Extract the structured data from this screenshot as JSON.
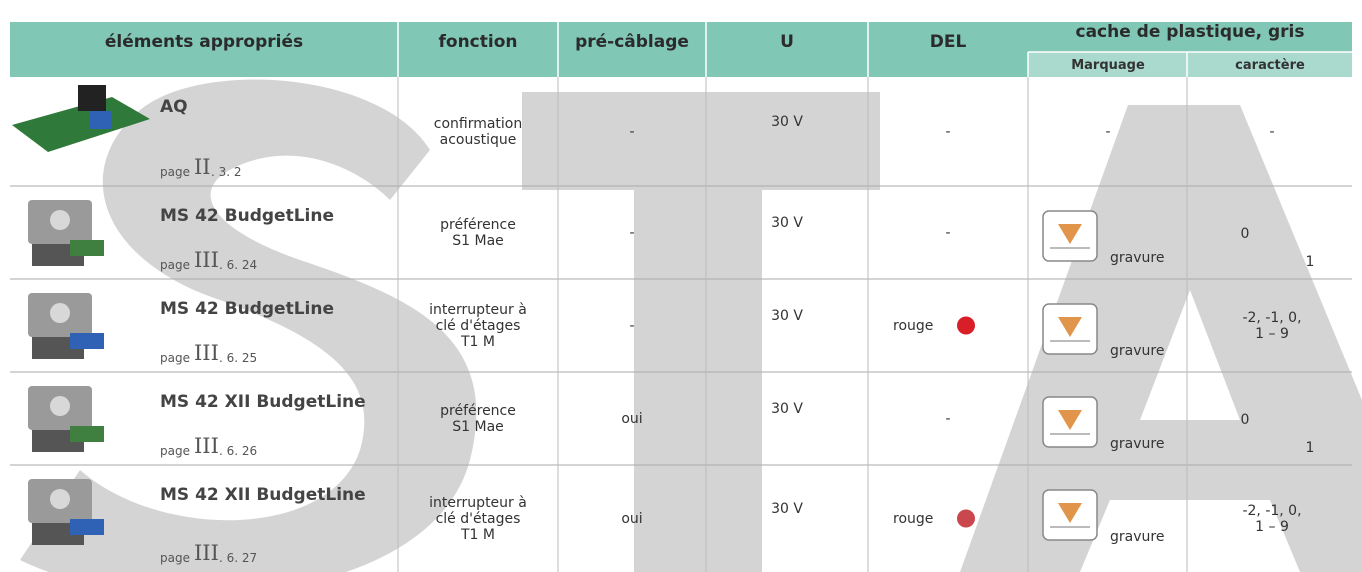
{
  "header": {
    "columns": [
      "éléments appropriés",
      "fonction",
      "pré-câblage",
      "U",
      "DEL"
    ],
    "cache_title": "cache de plastique, gris",
    "sub": [
      "Marquage",
      "caractère"
    ]
  },
  "rows": [
    {
      "name": "AQ",
      "page_prefix": "page",
      "page_volume": "II",
      "page_ref": ". 3. 2",
      "fonction": [
        "confirmation",
        "acoustique"
      ],
      "precablage": "-",
      "u": "30 V",
      "del": "-",
      "marquage": "-",
      "caractere": [
        "-"
      ]
    },
    {
      "name": "MS 42 BudgetLine",
      "page_prefix": "page",
      "page_volume": "III",
      "page_ref": ". 6. 24",
      "fonction": [
        "préférence",
        "S1 Mae"
      ],
      "precablage": "-",
      "u": "30 V",
      "del": "-",
      "marquage": "gravure",
      "caractere": [
        "0",
        "1"
      ]
    },
    {
      "name": "MS 42 BudgetLine",
      "page_prefix": "page",
      "page_volume": "III",
      "page_ref": ". 6. 25",
      "fonction": [
        "interrupteur à",
        "clé d'étages",
        "T1 M"
      ],
      "precablage": "-",
      "u": "30 V",
      "del": "rouge",
      "marquage": "gravure",
      "caractere": [
        "-2, -1, 0,",
        "1 – 9"
      ]
    },
    {
      "name": "MS 42 XII BudgetLine",
      "page_prefix": "page",
      "page_volume": "III",
      "page_ref": ". 6. 26",
      "fonction": [
        "préférence",
        "S1 Mae"
      ],
      "precablage": "oui",
      "u": "30 V",
      "del": "-",
      "marquage": "gravure",
      "caractere": [
        "0",
        "1"
      ]
    },
    {
      "name": "MS 42 XII BudgetLine",
      "page_prefix": "page",
      "page_volume": "III",
      "page_ref": ". 6. 27",
      "fonction": [
        "interrupteur à",
        "clé d'étages",
        "T1 M"
      ],
      "precablage": "oui",
      "u": "30 V",
      "del": "rouge",
      "marquage": "gravure",
      "caractere": [
        "-2, -1, 0,",
        "1 – 9"
      ]
    }
  ]
}
